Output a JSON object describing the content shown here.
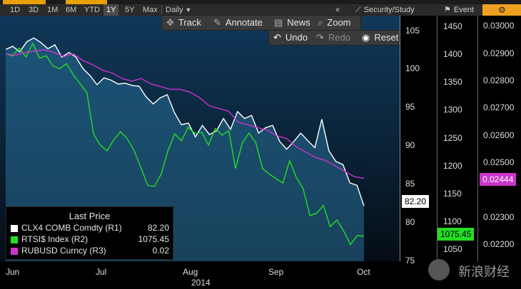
{
  "toolbar": {
    "periods": [
      "1D",
      "3D",
      "1M",
      "6M",
      "YTD",
      "1Y",
      "5Y",
      "Max"
    ],
    "selected_period": "1Y",
    "frequency": "Daily",
    "frequency_caret": "▼",
    "collapse_glyph": "«",
    "security_study": "Security/Study",
    "event": "Event",
    "colors": {
      "active": "#4b4b4b",
      "orange": "#f0a020"
    }
  },
  "menu": {
    "track": "Track",
    "annotate": "Annotate",
    "news": "News",
    "zoom": "Zoom",
    "undo": "Undo",
    "redo": "Redo",
    "reset": "Reset"
  },
  "axes": {
    "r1_ticks": [
      "105",
      "100",
      "95",
      "90",
      "85",
      "80",
      "75"
    ],
    "r2_ticks": [
      "1450",
      "1400",
      "1350",
      "1300",
      "1250",
      "1200",
      "1150",
      "1100",
      "1050"
    ],
    "r3_ticks": [
      "0.03000",
      "0.02900",
      "0.02800",
      "0.02700",
      "0.02600",
      "0.02500",
      "0.02300",
      "0.02200"
    ],
    "x_labels": [
      "Jun",
      "Jul",
      "Aug",
      "Sep",
      "Oct"
    ],
    "year": "2014"
  },
  "badges": {
    "r1": "82.20",
    "r2": "1075.45",
    "r3": "0.02444"
  },
  "legend": {
    "title": "Last Price",
    "items": [
      {
        "name": "CLX4 COMB Comdty  (R1)",
        "value": "82.20",
        "color": "#ffffff"
      },
      {
        "name": "RTSI$ Index  (R2)",
        "value": "1075.45",
        "color": "#22dd22"
      },
      {
        "name": "RUBUSD Curncy  (R3)",
        "value": "0.02",
        "color": "#cc33cc"
      }
    ]
  },
  "watermark": "新浪财经",
  "chart_data": {
    "type": "line",
    "x_labels": [
      "Jun",
      "Jul",
      "Aug",
      "Sep",
      "Oct"
    ],
    "series": [
      {
        "name": "CLX4 COMB Comdty (R1)",
        "color": "#ffffff",
        "values": [
          102.6,
          103.0,
          102.3,
          103.6,
          104.1,
          103.5,
          102.7,
          103.2,
          101.6,
          102.2,
          101.6,
          100.1,
          99.2,
          98.0,
          98.9,
          98.6,
          98.1,
          98.2,
          97.9,
          97.8,
          96.4,
          95.5,
          96.3,
          96.7,
          94.4,
          92.8,
          93.0,
          91.2,
          92.7,
          91.5,
          92.0,
          93.6,
          92.2,
          94.5,
          93.6,
          94.0,
          91.7,
          92.4,
          92.7,
          90.6,
          89.6,
          90.6,
          91.7,
          90.7,
          89.8,
          93.5,
          89.4,
          88.0,
          87.6,
          85.2,
          84.9,
          82.2
        ]
      },
      {
        "name": "RTSI$ Index (R2)",
        "color": "#22dd22",
        "values": [
          1402,
          1398,
          1412,
          1396,
          1420,
          1394,
          1398,
          1380,
          1375,
          1384,
          1364,
          1348,
          1332,
          1258,
          1238,
          1228,
          1248,
          1262,
          1249,
          1228,
          1198,
          1166,
          1164,
          1186,
          1228,
          1258,
          1246,
          1270,
          1259,
          1261,
          1238,
          1268,
          1256,
          1264,
          1196,
          1242,
          1260,
          1242,
          1196,
          1186,
          1178,
          1170,
          1210,
          1180,
          1160,
          1112,
          1116,
          1130,
          1092,
          1104,
          1084,
          1060,
          1076,
          1075
        ]
      },
      {
        "name": "RUBUSD Curncy (R3)",
        "color": "#cc33cc",
        "values": [
          0.029,
          0.02895,
          0.02905,
          0.0291,
          0.02915,
          0.02905,
          0.0289,
          0.029,
          0.02875,
          0.0286,
          0.0284,
          0.0283,
          0.0281,
          0.028,
          0.0281,
          0.0279,
          0.0278,
          0.0277,
          0.0277,
          0.0276,
          0.0274,
          0.0271,
          0.027,
          0.0269,
          0.0265,
          0.0264,
          0.0263,
          0.0262,
          0.026,
          0.0259,
          0.0256,
          0.0254,
          0.0252,
          0.0251,
          0.0249,
          0.0247,
          0.0245,
          0.02444
        ]
      }
    ],
    "r1_range": [
      75,
      107
    ],
    "r2_range": [
      1030,
      1470
    ],
    "r3_range": [
      0.0214,
      0.0304
    ]
  }
}
